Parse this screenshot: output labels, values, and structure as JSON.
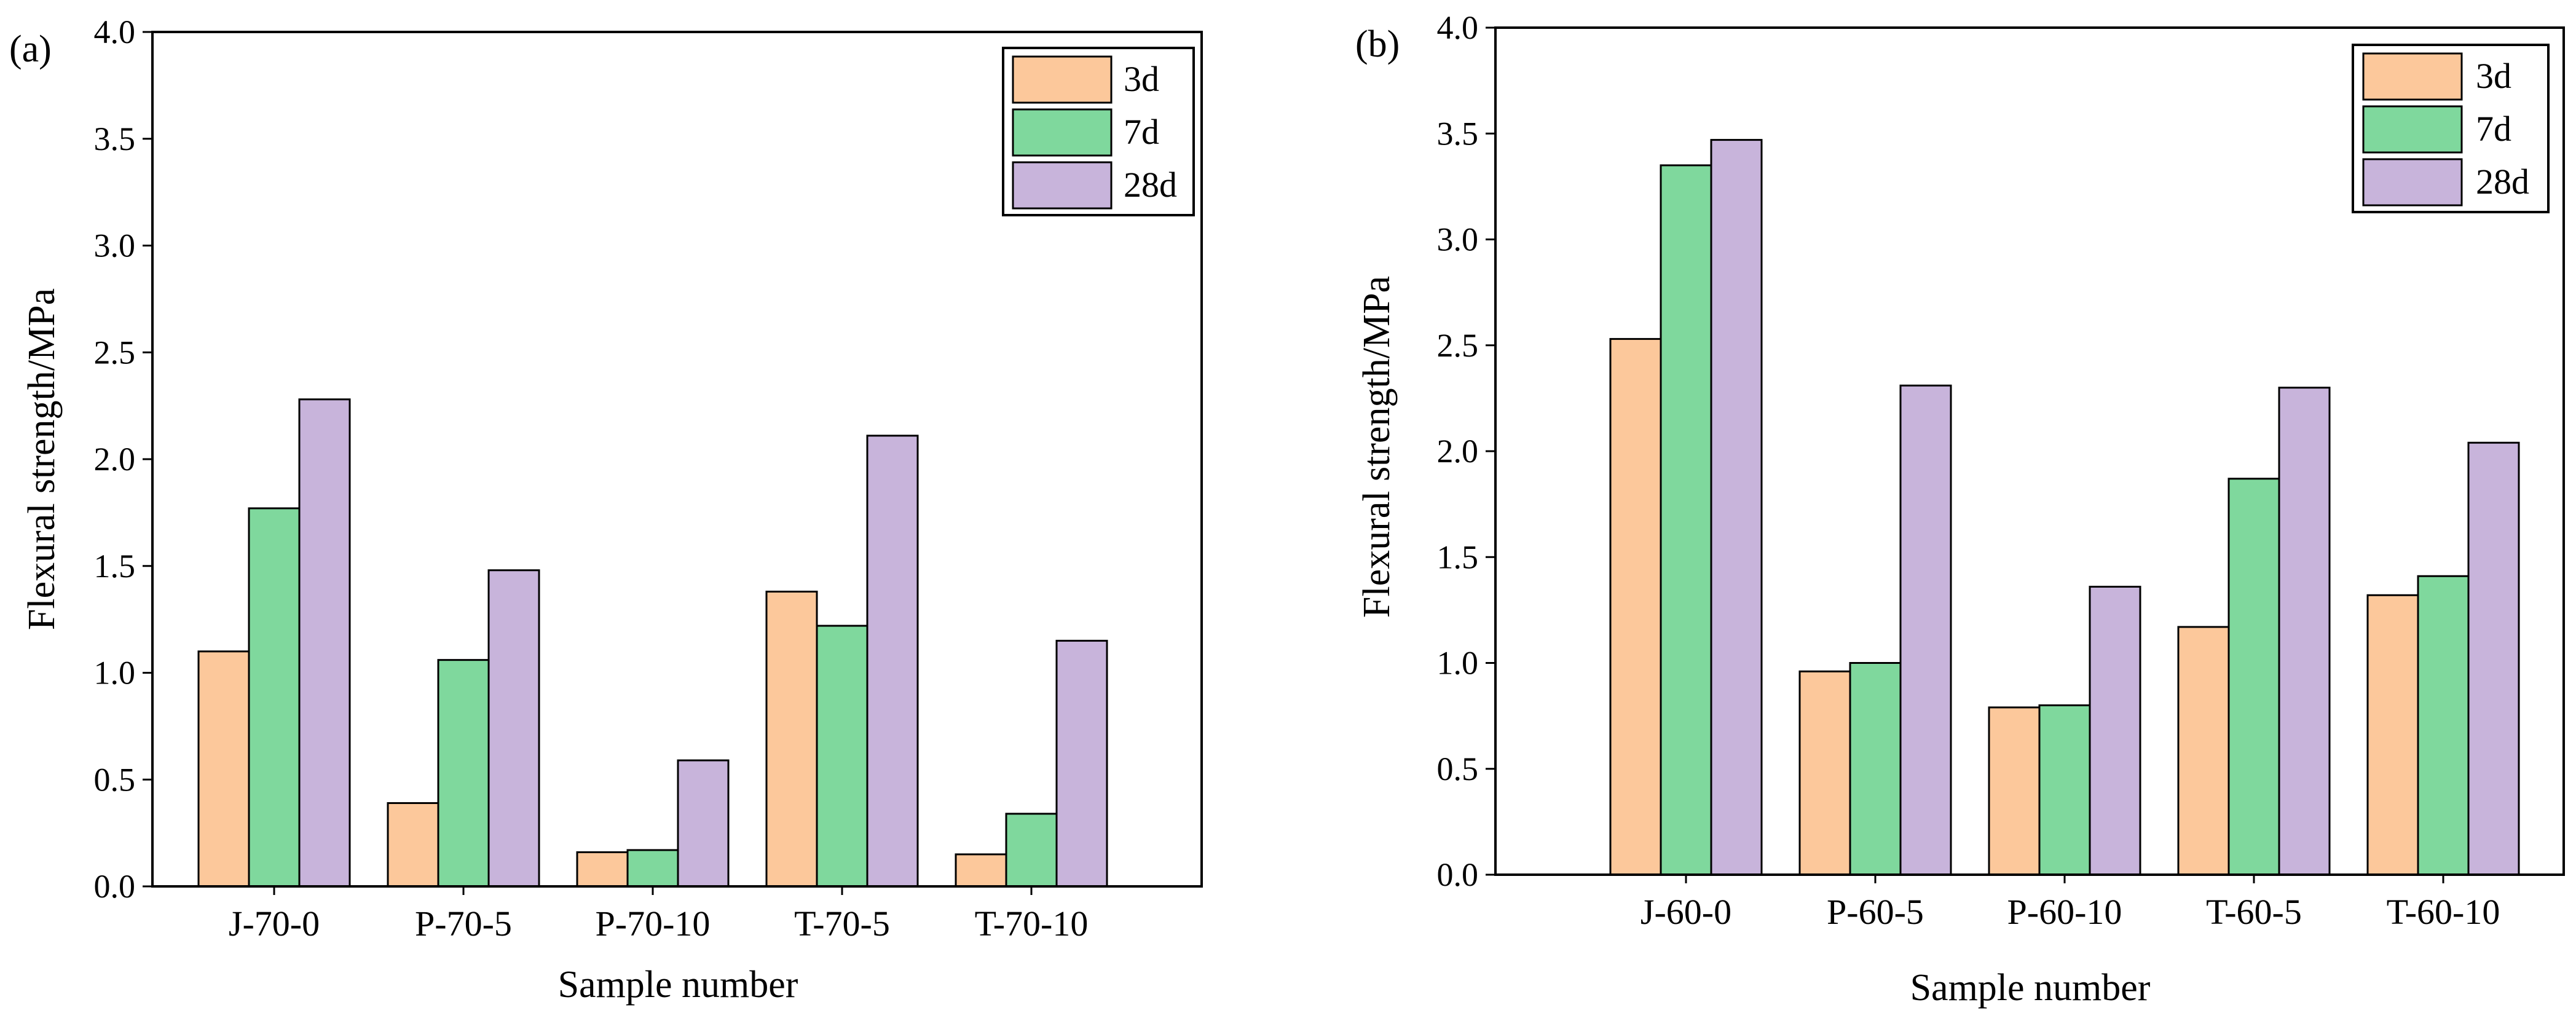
{
  "chart_data": [
    {
      "type": "bar",
      "panel_label": "(a)",
      "categories": [
        "J-70-0",
        "P-70-5",
        "P-70-10",
        "T-70-5",
        "T-70-10"
      ],
      "series": [
        {
          "name": "3d",
          "color": "#FCC89B",
          "values": [
            1.1,
            0.39,
            0.16,
            1.38,
            0.15
          ]
        },
        {
          "name": "7d",
          "color": "#7FD89D",
          "values": [
            1.77,
            1.06,
            0.17,
            1.22,
            0.34
          ]
        },
        {
          "name": "28d",
          "color": "#C8B4DB",
          "values": [
            2.28,
            1.48,
            0.59,
            2.11,
            1.15
          ]
        }
      ],
      "xlabel": "Sample number",
      "ylabel": "Flexural strength/MPa",
      "ylim": [
        0,
        4.0
      ],
      "yticks": [
        "0.0",
        "0.5",
        "1.0",
        "1.5",
        "2.0",
        "2.5",
        "3.0",
        "3.5",
        "4.0"
      ],
      "legend": "top-right"
    },
    {
      "type": "bar",
      "panel_label": "(b)",
      "categories": [
        "J-60-0",
        "P-60-5",
        "P-60-10",
        "T-60-5",
        "T-60-10"
      ],
      "series": [
        {
          "name": "3d",
          "color": "#FCC89B",
          "values": [
            2.53,
            0.96,
            0.79,
            1.17,
            1.32
          ]
        },
        {
          "name": "7d",
          "color": "#7FD89D",
          "values": [
            3.35,
            1.0,
            0.8,
            1.87,
            1.41
          ]
        },
        {
          "name": "28d",
          "color": "#C8B4DB",
          "values": [
            3.47,
            2.31,
            1.36,
            2.3,
            2.04
          ]
        }
      ],
      "xlabel": "Sample number",
      "ylabel": "Flexural strength/MPa",
      "ylim": [
        0,
        4.0
      ],
      "yticks": [
        "0.0",
        "0.5",
        "1.0",
        "1.5",
        "2.0",
        "2.5",
        "3.0",
        "3.5",
        "4.0"
      ],
      "legend": "top-right"
    }
  ]
}
